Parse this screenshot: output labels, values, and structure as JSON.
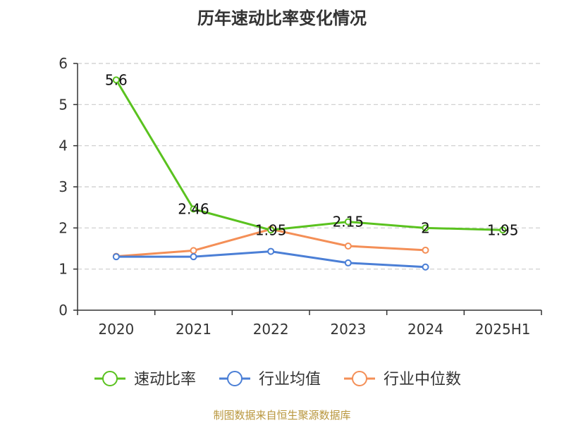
{
  "chart_data": {
    "type": "line",
    "title": "历年速动比率变化情况",
    "categories": [
      "2020",
      "2021",
      "2022",
      "2023",
      "2024",
      "2025H1"
    ],
    "ylim": [
      0,
      6
    ],
    "yticks": [
      0,
      1,
      2,
      3,
      4,
      5,
      6
    ],
    "grid": true,
    "legend_position": "bottom",
    "series": [
      {
        "name": "速动比率",
        "color": "#5ac21f",
        "values": [
          5.6,
          2.46,
          1.95,
          2.15,
          2.0,
          1.95
        ],
        "labels": [
          "5.6",
          "2.46",
          "1.95",
          "2.15",
          "2",
          "1.95"
        ]
      },
      {
        "name": "行业均值",
        "color": "#4b7fd6",
        "values": [
          1.3,
          1.3,
          1.43,
          1.15,
          1.05,
          null
        ]
      },
      {
        "name": "行业中位数",
        "color": "#f48f57",
        "values": [
          1.31,
          1.45,
          1.97,
          1.56,
          1.46,
          null
        ]
      }
    ]
  },
  "source_note": "制图数据来自恒生聚源数据库"
}
